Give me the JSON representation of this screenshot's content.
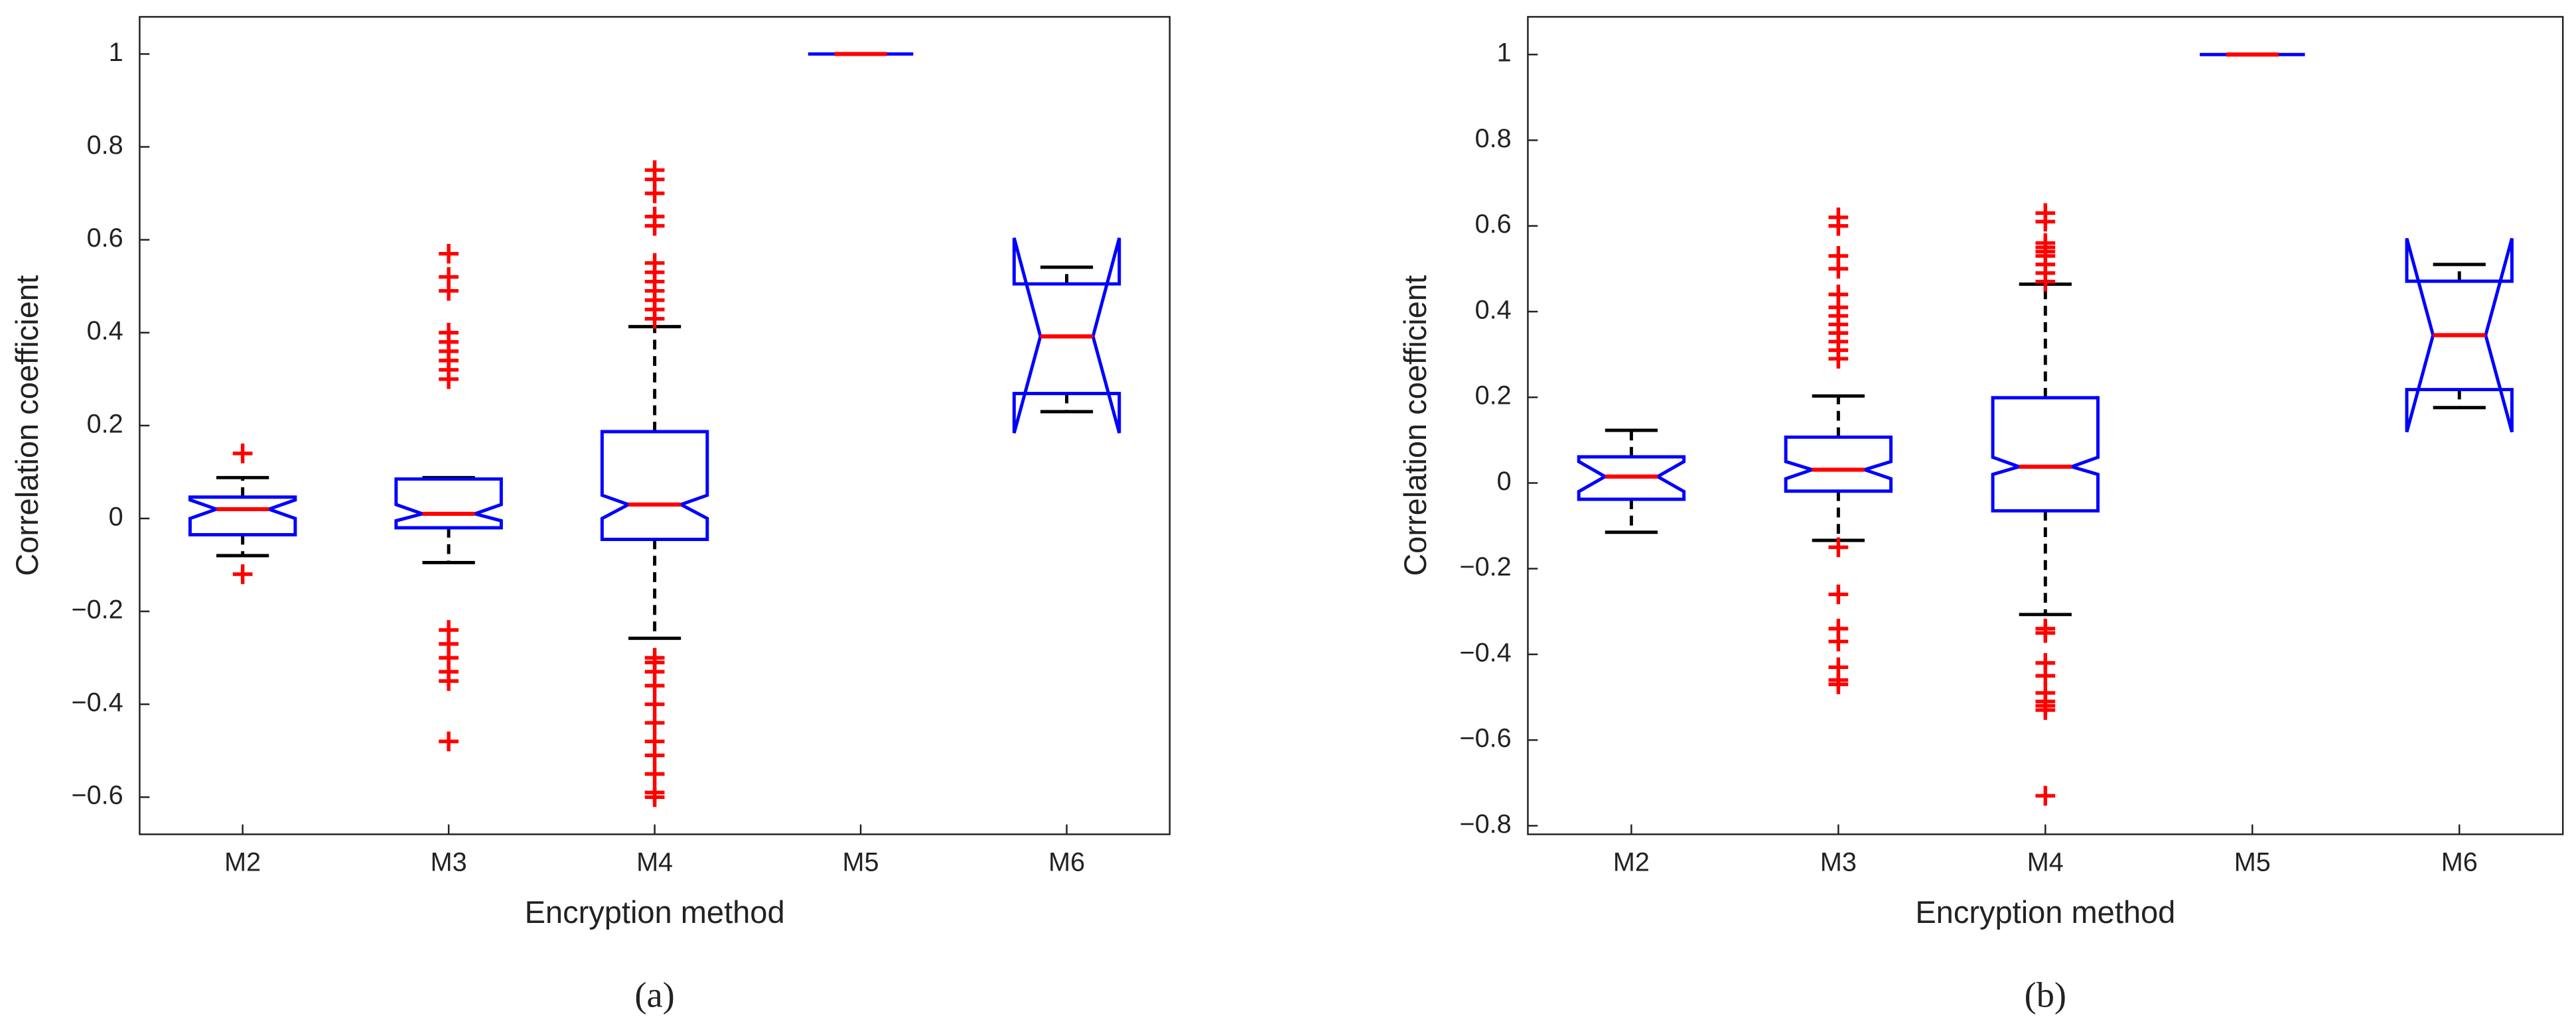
{
  "chart_data": [
    {
      "type": "box",
      "xlabel": "Encryption method",
      "ylabel": "Correlation coefficient",
      "caption": "(a)",
      "categories": [
        "M2",
        "M3",
        "M4",
        "M5",
        "M6"
      ],
      "ylim": [
        -0.68,
        1.08
      ],
      "yticks": [
        {
          "value": -0.6,
          "label": "−0.6"
        },
        {
          "value": -0.4,
          "label": "−0.4"
        },
        {
          "value": -0.2,
          "label": "−0.2"
        },
        0,
        0.2,
        0.4,
        0.6,
        0.8,
        1
      ],
      "box_color": "#0000ff",
      "median_color": "#ff0000",
      "whisker_color": "#000000",
      "outlier_color": "#ff0000",
      "boxes": [
        {
          "whisker_low": -0.08,
          "q1": -0.035,
          "median": 0.02,
          "q3": 0.046,
          "whisker_high": 0.088,
          "notch": [
            0.0,
            0.04
          ],
          "outliers": [
            0.14,
            -0.12
          ]
        },
        {
          "whisker_low": -0.095,
          "q1": -0.02,
          "median": 0.01,
          "q3": 0.085,
          "whisker_high": 0.088,
          "notch": [
            -0.005,
            0.03
          ],
          "outliers": [
            0.57,
            0.52,
            0.49,
            0.4,
            0.38,
            0.36,
            0.34,
            0.32,
            0.3,
            -0.24,
            -0.27,
            -0.3,
            -0.33,
            -0.35,
            -0.48
          ]
        },
        {
          "whisker_low": -0.258,
          "q1": -0.045,
          "median": 0.03,
          "q3": 0.187,
          "whisker_high": 0.413,
          "notch": [
            0.0,
            0.05
          ],
          "outliers": [
            0.75,
            0.73,
            0.7,
            0.65,
            0.63,
            0.55,
            0.53,
            0.51,
            0.49,
            0.47,
            0.45,
            0.43,
            -0.3,
            -0.31,
            -0.33,
            -0.36,
            -0.4,
            -0.44,
            -0.48,
            -0.51,
            -0.55,
            -0.59,
            -0.6
          ]
        },
        {
          "whisker_low": 1,
          "q1": 1,
          "median": 1,
          "q3": 1,
          "whisker_high": 1,
          "notch": [
            1,
            1
          ],
          "outliers": []
        },
        {
          "whisker_low": 0.23,
          "q1": 0.269,
          "median": 0.392,
          "q3": 0.505,
          "whisker_high": 0.541,
          "notch": [
            0.184,
            0.604
          ],
          "outliers": []
        }
      ]
    },
    {
      "type": "box",
      "xlabel": "Encryption method",
      "ylabel": "Correlation coefficient",
      "caption": "(b)",
      "categories": [
        "M2",
        "M3",
        "M4",
        "M5",
        "M6"
      ],
      "ylim": [
        -0.82,
        1.088
      ],
      "yticks": [
        {
          "value": -0.8,
          "label": "−0.8"
        },
        {
          "value": -0.6,
          "label": "−0.6"
        },
        {
          "value": -0.4,
          "label": "−0.4"
        },
        {
          "value": -0.2,
          "label": "−0.2"
        },
        0,
        0.2,
        0.4,
        0.6,
        0.8,
        1
      ],
      "box_color": "#0000ff",
      "median_color": "#ff0000",
      "whisker_color": "#000000",
      "outlier_color": "#ff0000",
      "boxes": [
        {
          "whisker_low": -0.115,
          "q1": -0.038,
          "median": 0.015,
          "q3": 0.061,
          "whisker_high": 0.123,
          "notch": [
            -0.02,
            0.05
          ],
          "outliers": []
        },
        {
          "whisker_low": -0.134,
          "q1": -0.019,
          "median": 0.031,
          "q3": 0.107,
          "whisker_high": 0.203,
          "notch": [
            0.01,
            0.05
          ],
          "outliers": [
            0.62,
            0.6,
            0.53,
            0.5,
            0.44,
            0.41,
            0.39,
            0.37,
            0.35,
            0.33,
            0.31,
            0.29,
            -0.15,
            -0.26,
            -0.34,
            -0.37,
            -0.43,
            -0.46,
            -0.47
          ]
        },
        {
          "whisker_low": -0.307,
          "q1": -0.065,
          "median": 0.038,
          "q3": 0.199,
          "whisker_high": 0.464,
          "notch": [
            0.02,
            0.06
          ],
          "outliers": [
            0.63,
            0.61,
            0.56,
            0.55,
            0.54,
            0.53,
            0.51,
            0.49,
            0.47,
            -0.34,
            -0.35,
            -0.42,
            -0.45,
            -0.49,
            -0.51,
            -0.52,
            -0.53,
            -0.73
          ]
        },
        {
          "whisker_low": 1,
          "q1": 1,
          "median": 1,
          "q3": 1,
          "whisker_high": 1,
          "notch": [
            1,
            1
          ],
          "outliers": []
        },
        {
          "whisker_low": 0.176,
          "q1": 0.218,
          "median": 0.345,
          "q3": 0.471,
          "whisker_high": 0.51,
          "notch": [
            0.119,
            0.571
          ],
          "outliers": []
        }
      ]
    }
  ]
}
